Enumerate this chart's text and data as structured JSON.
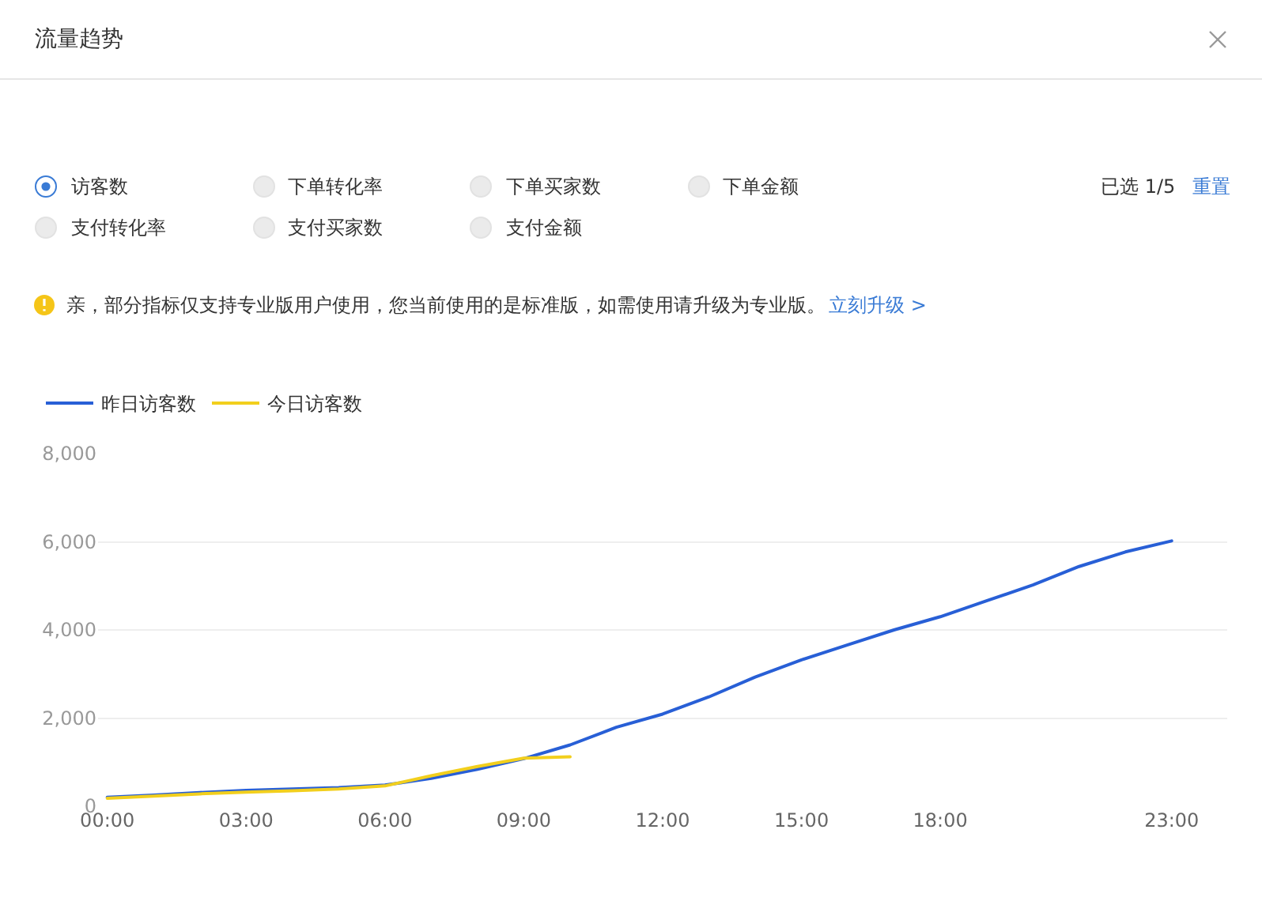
{
  "chart_data": {
    "type": "line",
    "title": "流量趋势",
    "x": [
      0,
      1,
      2,
      3,
      4,
      5,
      6,
      7,
      8,
      9,
      10,
      11,
      12,
      13,
      14,
      15,
      16,
      17,
      18,
      19,
      20,
      21,
      22,
      23
    ],
    "series": [
      {
        "name": "昨日访客数",
        "color": "#285fd6",
        "values": [
          200,
          250,
          310,
          360,
          390,
          420,
          480,
          630,
          840,
          1080,
          1390,
          1790,
          2090,
          2480,
          2930,
          3320,
          3660,
          4000,
          4300,
          4660,
          5020,
          5440,
          5770,
          6020
        ]
      },
      {
        "name": "今日访客数",
        "color": "#f2cf1d",
        "x": [
          0,
          1,
          2,
          3,
          4,
          5,
          6,
          7,
          8,
          9,
          10
        ],
        "values": [
          180,
          230,
          280,
          320,
          350,
          390,
          460,
          690,
          900,
          1090,
          1120
        ]
      }
    ],
    "xlim": [
      -0.2,
      24.2
    ],
    "xticks": [
      {
        "value": 0,
        "label": "00:00"
      },
      {
        "value": 3,
        "label": "03:00"
      },
      {
        "value": 6,
        "label": "06:00"
      },
      {
        "value": 9,
        "label": "09:00"
      },
      {
        "value": 12,
        "label": "12:00"
      },
      {
        "value": 15,
        "label": "15:00"
      },
      {
        "value": 18,
        "label": "18:00"
      },
      {
        "value": 23,
        "label": "23:00"
      }
    ],
    "ylim": [
      0,
      8000
    ],
    "yticks": [
      0,
      {
        "value": 2000,
        "label": "2,000"
      },
      {
        "value": 4000,
        "label": "4,000"
      },
      {
        "value": 6000,
        "label": "6,000"
      },
      {
        "value": 8000,
        "label": "8,000"
      }
    ],
    "grid": "y",
    "legend": "top left",
    "line_style": "solid",
    "annotations": [
      "访客数",
      "下单转化率",
      "下单买家数",
      "下单金额",
      "支付转化率",
      "支付买家数",
      "支付金额",
      "已选 1/5",
      "重置",
      "亲，部分指标仅支持专业版用户使用，您当前使用的是标准版，如需使用请升级为专业版。",
      "立刻升级 >"
    ]
  }
}
